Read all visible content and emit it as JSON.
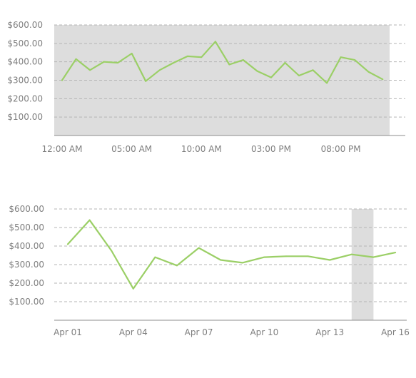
{
  "chart_data": [
    {
      "type": "line",
      "title": "",
      "xlabel": "",
      "ylabel": "",
      "ylim": [
        0,
        600
      ],
      "y_ticks": [
        "$100.00",
        "$200.00",
        "$300.00",
        "$400.00",
        "$500.00",
        "$600.00"
      ],
      "y_tick_values": [
        100,
        200,
        300,
        400,
        500,
        600
      ],
      "x_ticks": [
        "12:00 AM",
        "05:00 AM",
        "10:00 AM",
        "03:00 PM",
        "08:00 PM"
      ],
      "x_tick_values": [
        0,
        5,
        10,
        15,
        20
      ],
      "xlim": [
        0,
        23.5
      ],
      "highlight": {
        "from": 0,
        "to": 23.5,
        "color": "#dddddd"
      },
      "grid": true,
      "color": "#9bcf66",
      "series": [
        {
          "x": [
            0,
            1,
            2,
            3,
            4,
            5,
            6,
            7,
            8,
            9,
            10,
            11,
            12,
            13,
            14,
            15,
            16,
            17,
            18,
            19,
            20,
            21,
            22,
            23
          ],
          "values": [
            300,
            415,
            355,
            400,
            395,
            445,
            295,
            355,
            395,
            430,
            425,
            510,
            385,
            410,
            350,
            315,
            395,
            325,
            355,
            285,
            425,
            410,
            345,
            305
          ]
        }
      ]
    },
    {
      "type": "line",
      "title": "",
      "xlabel": "",
      "ylabel": "",
      "ylim": [
        0,
        600
      ],
      "y_ticks": [
        "$100.00",
        "$200.00",
        "$300.00",
        "$400.00",
        "$500.00",
        "$600.00"
      ],
      "y_tick_values": [
        100,
        200,
        300,
        400,
        500,
        600
      ],
      "x_ticks": [
        "Apr 01",
        "Apr 04",
        "Apr 07",
        "Apr 10",
        "Apr 13",
        "Apr 16"
      ],
      "x_tick_values": [
        "2024-04-01",
        "2024-04-04",
        "2024-04-07",
        "2024-04-10",
        "2024-04-13",
        "2024-04-16"
      ],
      "xlim": [
        "2024-04-01",
        "2024-04-16"
      ],
      "highlight": {
        "from": "2024-04-14",
        "to": "2024-04-15",
        "color": "#dddddd"
      },
      "grid": true,
      "color": "#9bcf66",
      "series": [
        {
          "x": [
            "2024-04-01",
            "2024-04-02",
            "2024-04-03",
            "2024-04-04",
            "2024-04-05",
            "2024-04-06",
            "2024-04-07",
            "2024-04-08",
            "2024-04-09",
            "2024-04-10",
            "2024-04-11",
            "2024-04-12",
            "2024-04-13",
            "2024-04-14",
            "2024-04-15",
            "2024-04-16"
          ],
          "values": [
            410,
            540,
            375,
            170,
            340,
            295,
            390,
            325,
            310,
            340,
            345,
            345,
            325,
            355,
            340,
            365
          ]
        }
      ]
    }
  ]
}
